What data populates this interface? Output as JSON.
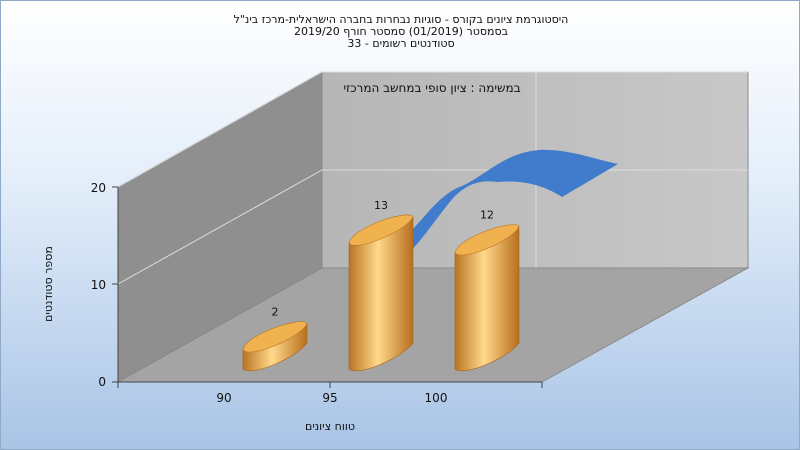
{
  "chart": {
    "title_lines": [
      "היסטוגרמת ציונים בקורס - סוגיות נבחרות בחברה הישראלית-מרכז בינ\"ל",
      "בסמסטר  (01/2019)  סמסטר חורף 2019/20",
      "סטודנטים רשומים - 33"
    ],
    "legend_label": "במשימה : ציון סופי במחשב המרכזי"
  },
  "chart_data": {
    "type": "bar",
    "categories": [
      "90",
      "95",
      "100"
    ],
    "values": [
      2,
      13,
      12
    ],
    "data_labels": [
      "2",
      "13",
      "12"
    ],
    "xlabel": "טווח ציונים",
    "ylabel": "מספר סטודנטים",
    "ylim": [
      0,
      20
    ],
    "yticks": [
      "0",
      "10",
      "20"
    ],
    "legend_placement": "top",
    "grid": true,
    "colors": {
      "bar": "#e8a444",
      "curve": "#3a78cc",
      "wall": "#9a9a9a"
    }
  }
}
